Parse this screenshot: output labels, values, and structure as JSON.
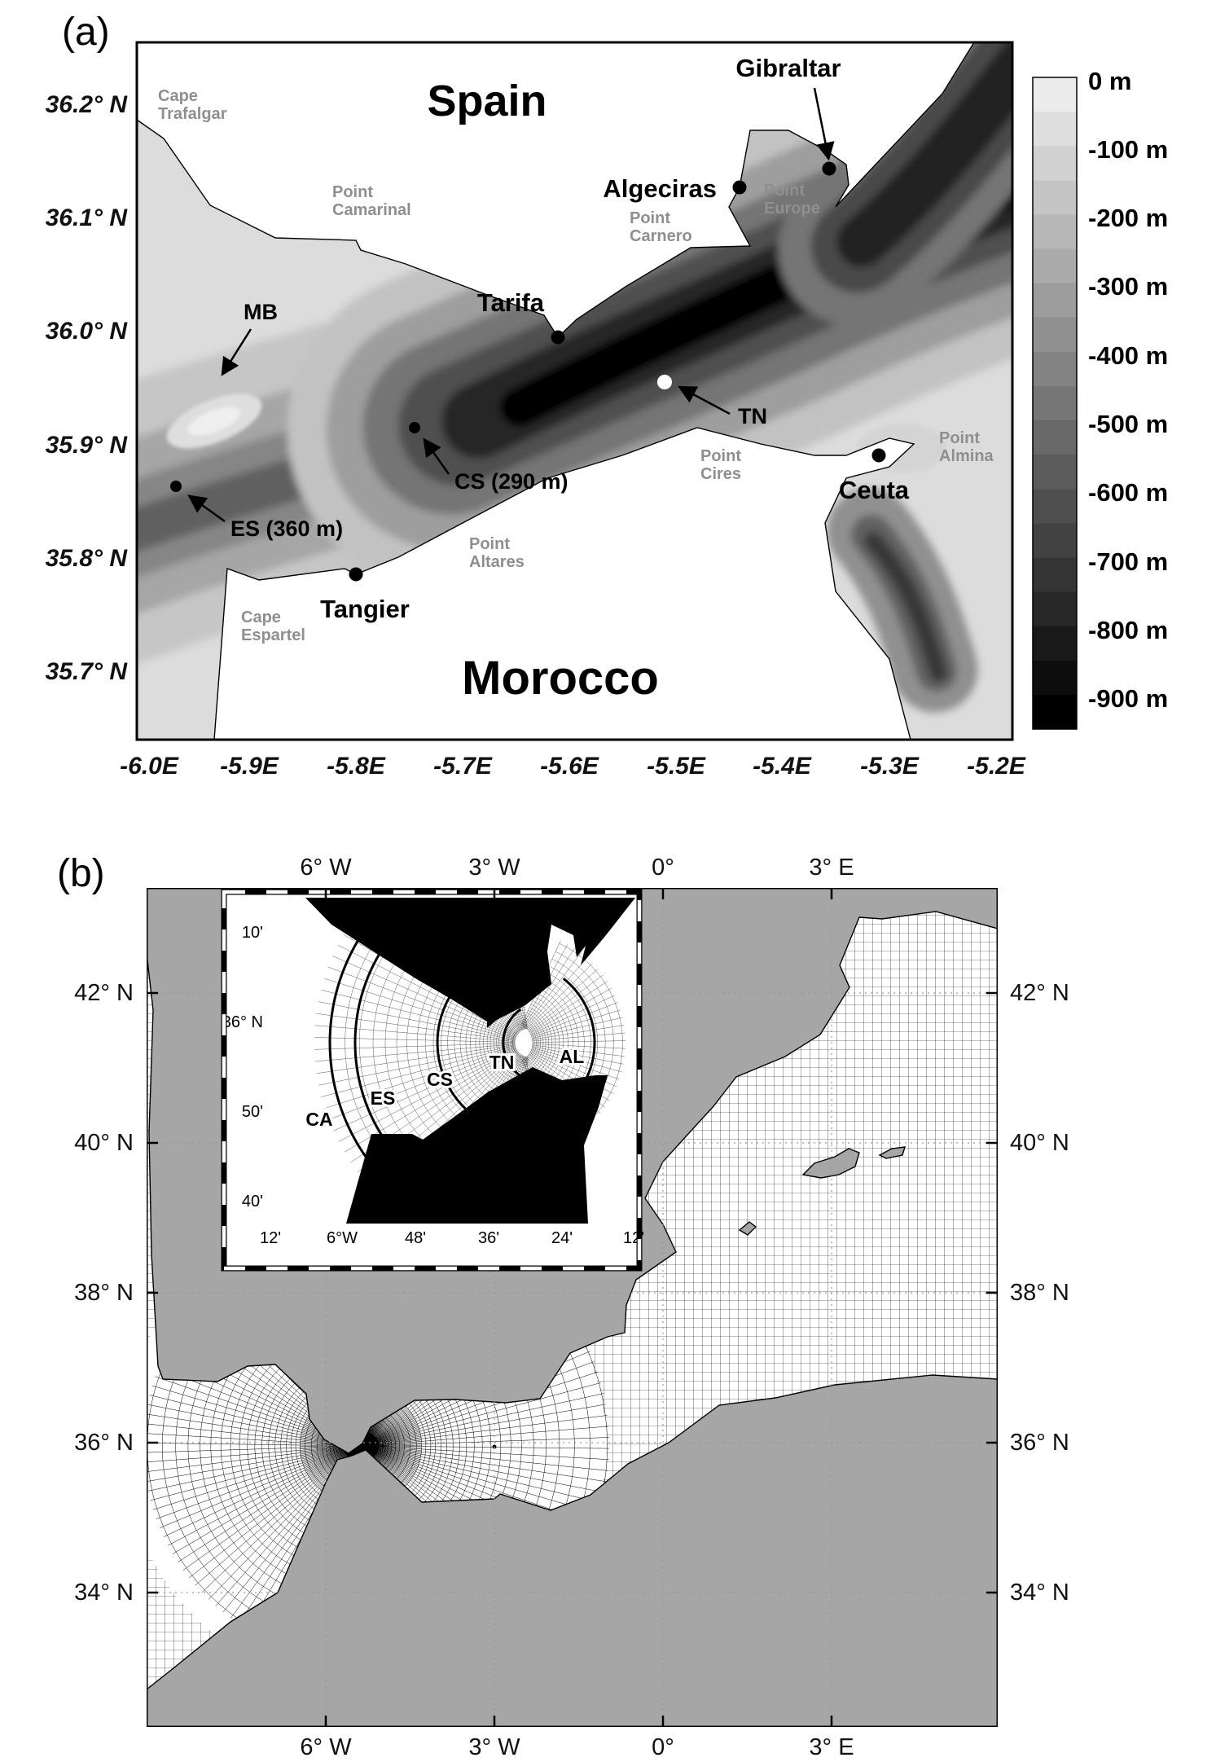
{
  "panel_a": {
    "tag": "(a)",
    "sea_color": "#dcdcdc",
    "land_color": "#ffffff",
    "x_ticks": [
      "-6.0E",
      "-5.9E",
      "-5.8E",
      "-5.7E",
      "-5.6E",
      "-5.5E",
      "-5.4E",
      "-5.3E",
      "-5.2E"
    ],
    "y_ticks": [
      "36.2° N",
      "36.1° N",
      "36.0° N",
      "35.9° N",
      "35.8° N",
      "35.7° N"
    ],
    "countries": {
      "spain": "Spain",
      "morocco": "Morocco"
    },
    "cities": {
      "gibraltar": "Gibraltar",
      "algeciras": "Algeciras",
      "tarifa": "Tarifa",
      "ceuta": "Ceuta",
      "tangier": "Tangier"
    },
    "points": {
      "trafalgar": [
        "Cape",
        "Trafalgar"
      ],
      "camarinal": [
        "Point",
        "Camarinal"
      ],
      "carnero": [
        "Point",
        "Carnero"
      ],
      "europe": [
        "Point",
        "Europe"
      ],
      "cires": [
        "Point",
        "Cires"
      ],
      "almina": [
        "Point",
        "Almina"
      ],
      "altares": [
        "Point",
        "Altares"
      ],
      "espartel": [
        "Cape",
        "Espartel"
      ]
    },
    "features": {
      "mb": "MB",
      "cs": "CS (290 m)",
      "es": "ES (360 m)",
      "tn": "TN"
    },
    "colorbar": {
      "labels": [
        "0 m",
        "-100 m",
        "-200 m",
        "-300 m",
        "-400 m",
        "-500 m",
        "-600 m",
        "-700 m",
        "-800 m",
        "-900 m"
      ],
      "top_color": "#ececec",
      "bottom_color": "#000000"
    }
  },
  "panel_b": {
    "tag": "(b)",
    "land_color": "#a6a6a6",
    "sea_color": "#ffffff",
    "x_ticks": [
      "6° W",
      "3° W",
      "0°",
      "3° E"
    ],
    "y_ticks": [
      "42° N",
      "40° N",
      "38° N",
      "36° N",
      "34° N"
    ],
    "inset": {
      "y_ticks": [
        "10'",
        "36° N",
        "50'",
        "40'"
      ],
      "x_ticks": [
        "12'",
        "6°W",
        "48'",
        "36'",
        "24'",
        "12'"
      ],
      "sections": [
        "CA",
        "ES",
        "CS",
        "TN",
        "AL"
      ]
    }
  }
}
